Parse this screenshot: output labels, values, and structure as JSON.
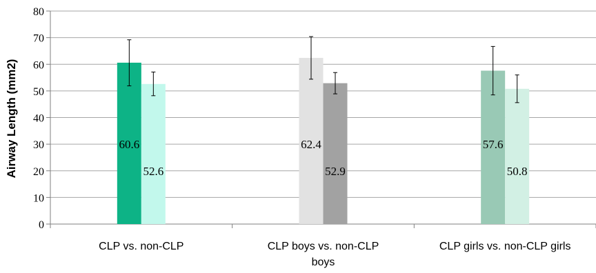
{
  "chart_data": {
    "type": "bar",
    "title": "",
    "xlabel": "",
    "ylabel": "Airway Length (mm2)",
    "ylim": [
      0,
      80
    ],
    "yticks": [
      0,
      10,
      20,
      30,
      40,
      50,
      60,
      70,
      80
    ],
    "grid": true,
    "legend": "none",
    "groups": [
      {
        "category": [
          "CLP vs. non-CLP"
        ],
        "bars": [
          {
            "value": 60.6,
            "label": "60.6",
            "error": [
              51.9,
              69.2
            ],
            "color": "#0db386"
          },
          {
            "value": 52.6,
            "label": "52.6",
            "error": [
              48.2,
              57.1
            ],
            "color": "#c2f8ec"
          }
        ]
      },
      {
        "category": [
          "CLP boys vs. non-CLP",
          "boys"
        ],
        "bars": [
          {
            "value": 62.4,
            "label": "62.4",
            "error": [
              54.4,
              70.4
            ],
            "color": "#e2e2e2"
          },
          {
            "value": 52.9,
            "label": "52.9",
            "error": [
              48.9,
              56.9
            ],
            "color": "#a2a2a2"
          }
        ]
      },
      {
        "category": [
          "CLP girls vs. non-CLP girls"
        ],
        "bars": [
          {
            "value": 57.6,
            "label": "57.6",
            "error": [
              48.5,
              66.7
            ],
            "color": "#99c9b5"
          },
          {
            "value": 50.8,
            "label": "50.8",
            "error": [
              45.6,
              56.0
            ],
            "color": "#d2f0e4"
          }
        ]
      }
    ]
  }
}
